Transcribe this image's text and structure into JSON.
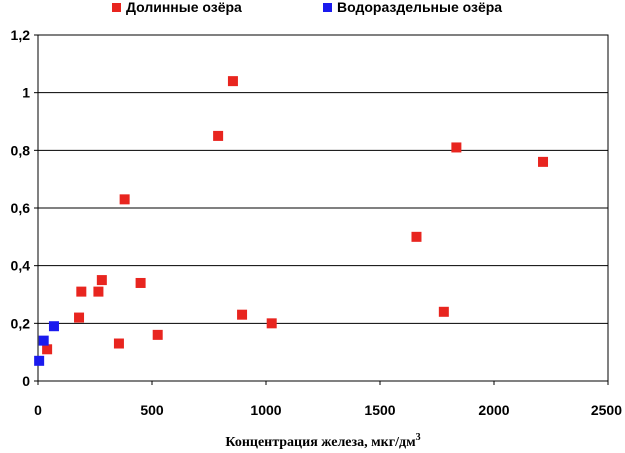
{
  "chart_data": {
    "type": "scatter",
    "title": "",
    "xlabel": "Концентрация железа, мкг/дм",
    "xlabel_superscript": "3",
    "ylabel": "",
    "xlim": [
      0,
      2500
    ],
    "ylim": [
      0,
      1.2
    ],
    "x_ticks": [
      "0",
      "500",
      "1000",
      "1500",
      "2000",
      "2500"
    ],
    "y_ticks": [
      "0",
      "0,2",
      "0,4",
      "0,6",
      "0,8",
      "1",
      "1,2"
    ],
    "grid": "horizontal",
    "legend_position": "top",
    "series": [
      {
        "name": "Долинные озёра",
        "color": "#e8251f",
        "marker": "square",
        "points": [
          {
            "x": 40,
            "y": 0.11
          },
          {
            "x": 180,
            "y": 0.22
          },
          {
            "x": 190,
            "y": 0.31
          },
          {
            "x": 265,
            "y": 0.31
          },
          {
            "x": 280,
            "y": 0.35
          },
          {
            "x": 355,
            "y": 0.13
          },
          {
            "x": 380,
            "y": 0.63
          },
          {
            "x": 450,
            "y": 0.34
          },
          {
            "x": 525,
            "y": 0.16
          },
          {
            "x": 790,
            "y": 0.85
          },
          {
            "x": 855,
            "y": 1.04
          },
          {
            "x": 895,
            "y": 0.23
          },
          {
            "x": 1025,
            "y": 0.2
          },
          {
            "x": 1660,
            "y": 0.5
          },
          {
            "x": 1780,
            "y": 0.24
          },
          {
            "x": 1835,
            "y": 0.81
          },
          {
            "x": 2215,
            "y": 0.76
          }
        ]
      },
      {
        "name": "Водораздельные озёра",
        "color": "#1a1aee",
        "marker": "square",
        "points": [
          {
            "x": 5,
            "y": 0.07
          },
          {
            "x": 25,
            "y": 0.14
          },
          {
            "x": 70,
            "y": 0.19
          }
        ]
      }
    ]
  }
}
